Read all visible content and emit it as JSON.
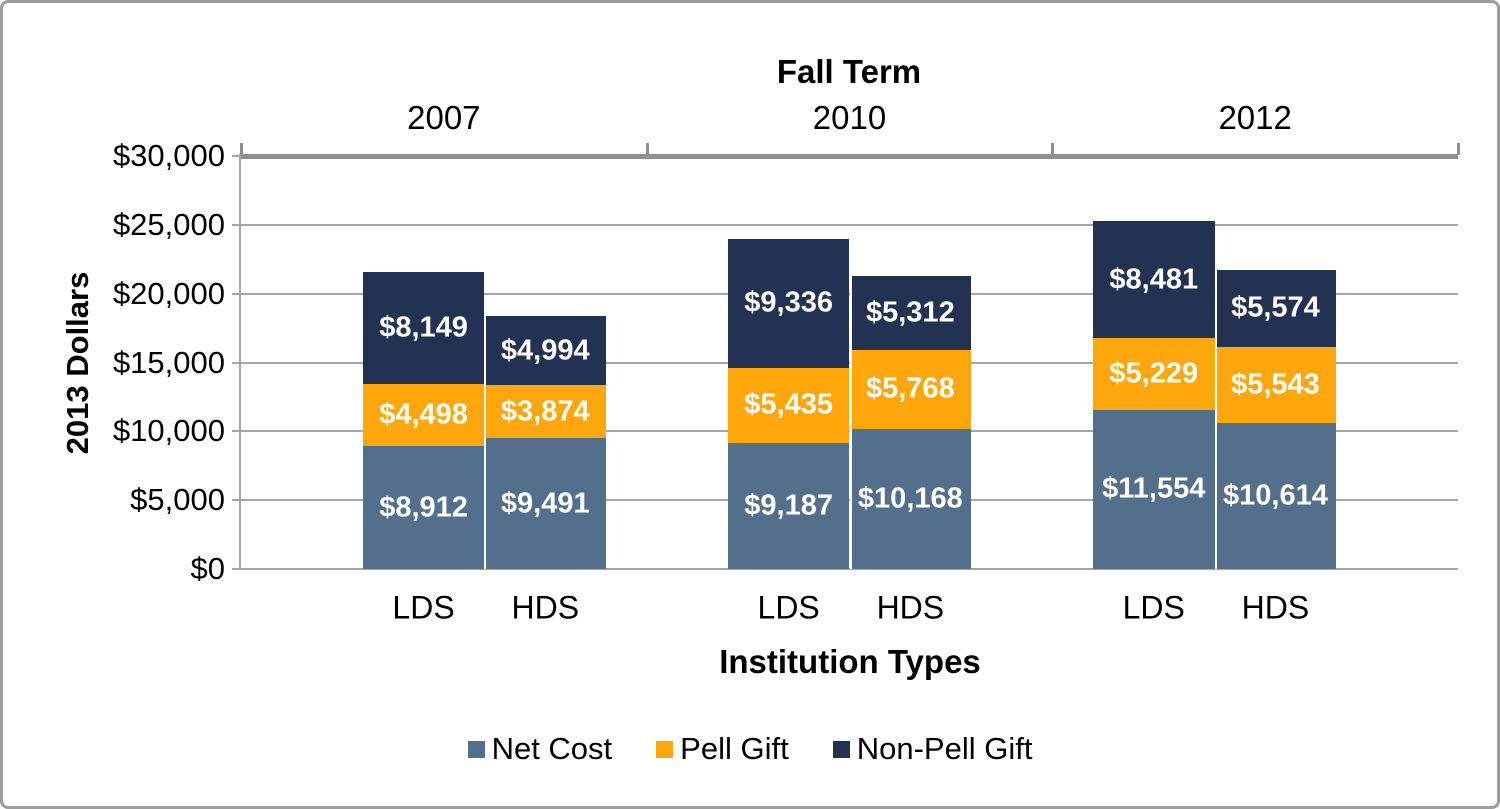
{
  "chart_data": {
    "type": "bar",
    "variant": "grouped-stacked-columns",
    "title": "Fall Term",
    "xlabel": "Institution Types",
    "ylabel": "2013 Dollars",
    "ylim": [
      0,
      30000
    ],
    "ytick_step": 5000,
    "ytick_labels": [
      "$0",
      "$5,000",
      "$10,000",
      "$15,000",
      "$20,000",
      "$25,000",
      "$30,000"
    ],
    "grid": true,
    "legend_position": "bottom",
    "group_labels": [
      "2007",
      "2010",
      "2012"
    ],
    "bar_labels": [
      "LDS",
      "HDS"
    ],
    "series": [
      {
        "name": "Net Cost",
        "color": "#546F8C",
        "values": [
          [
            8912,
            9491
          ],
          [
            9187,
            10168
          ],
          [
            11554,
            10614
          ]
        ]
      },
      {
        "name": "Pell Gift",
        "color": "#FFA70D",
        "values": [
          [
            4498,
            3874
          ],
          [
            5435,
            5768
          ],
          [
            5229,
            5543
          ]
        ]
      },
      {
        "name": "Non-Pell Gift",
        "color": "#233253",
        "values": [
          [
            8149,
            4994
          ],
          [
            9336,
            5312
          ],
          [
            8481,
            5574
          ]
        ]
      }
    ],
    "data_label_format": "$#,##0",
    "data_label_color": "#FFFFFF",
    "colors": {
      "axis": "#8F8F8F",
      "grid": "#A6A6A6",
      "frame_border": "#9C9C9C",
      "text": "#000000"
    }
  }
}
